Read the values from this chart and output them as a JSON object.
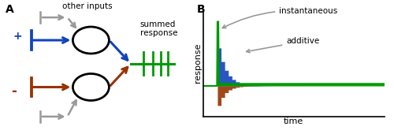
{
  "panel_A_label": "A",
  "panel_B_label": "B",
  "text_other_inputs": "other inputs",
  "text_summed_response": "summed\nresponse",
  "text_instantaneous": "instantaneous",
  "text_additive": "additive",
  "text_response": "response",
  "text_time": "time",
  "text_plus": "+",
  "text_minus": "-",
  "color_blue": "#1144bb",
  "color_red": "#993300",
  "color_green": "#009900",
  "color_gray": "#999999",
  "color_black": "#000000",
  "color_white": "#ffffff",
  "bg_color": "#ffffff"
}
